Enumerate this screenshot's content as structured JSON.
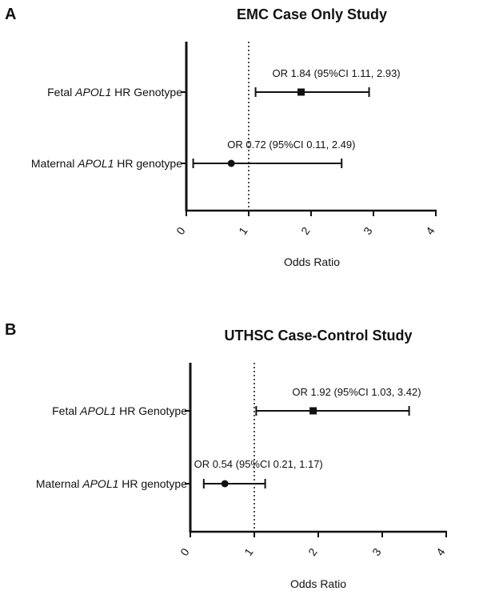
{
  "chart_data": [
    {
      "type": "forest",
      "panel": "A",
      "title": "EMC Case Only Study",
      "xlabel": "Odds Ratio",
      "xlim": [
        0,
        4
      ],
      "xticks": [
        "0",
        "1",
        "2",
        "3",
        "4"
      ],
      "reference_line": 1,
      "rows": [
        {
          "label_pre": "Fetal ",
          "label_gene": "APOL1",
          "label_post": " HR Genotype",
          "or": 1.84,
          "lo": 1.11,
          "hi": 2.93,
          "marker": "square",
          "annotation": "OR 1.84 (95%CI 1.11, 2.93)"
        },
        {
          "label_pre": "Maternal ",
          "label_gene": "APOL1",
          "label_post": " HR genotype",
          "or": 0.72,
          "lo": 0.11,
          "hi": 2.49,
          "marker": "circle",
          "annotation": "OR 0.72 (95%CI 0.11, 2.49)"
        }
      ]
    },
    {
      "type": "forest",
      "panel": "B",
      "title": "UTHSC Case-Control Study",
      "xlabel": "Odds Ratio",
      "xlim": [
        0,
        4
      ],
      "xticks": [
        "0",
        "1",
        "2",
        "3",
        "4"
      ],
      "reference_line": 1,
      "rows": [
        {
          "label_pre": "Fetal ",
          "label_gene": "APOL1",
          "label_post": " HR Genotype",
          "or": 1.92,
          "lo": 1.03,
          "hi": 3.42,
          "marker": "square",
          "annotation": "OR 1.92 (95%CI 1.03, 3.42)"
        },
        {
          "label_pre": "Maternal ",
          "label_gene": "APOL1",
          "label_post": " HR genotype",
          "or": 0.54,
          "lo": 0.21,
          "hi": 1.17,
          "marker": "circle",
          "annotation": "OR 0.54 (95%CI 0.21, 1.17)"
        }
      ]
    }
  ]
}
